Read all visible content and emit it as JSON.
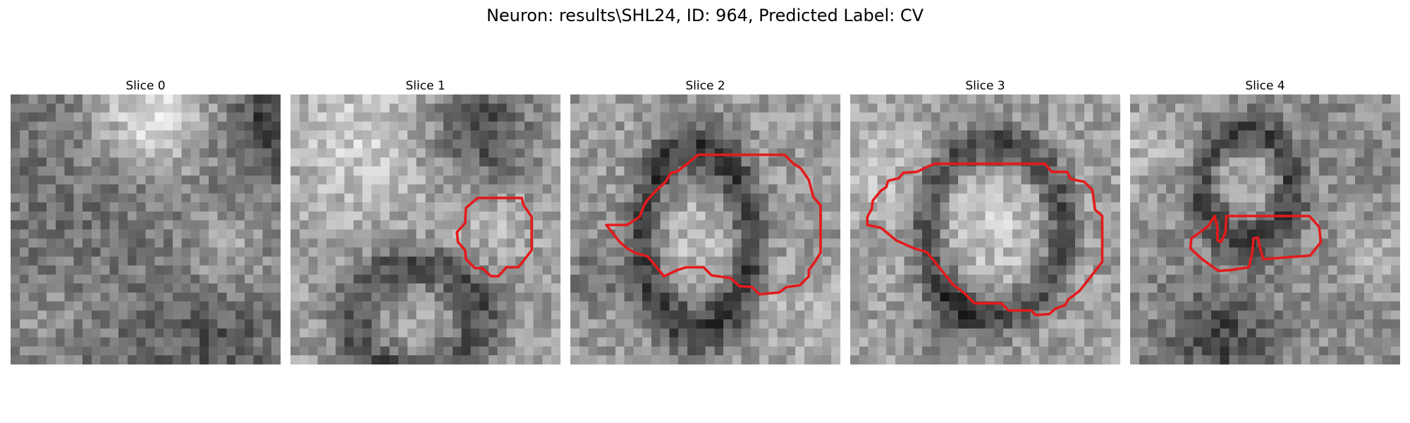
{
  "figure": {
    "title": "Neuron: results\\SHL24, ID: 964, Predicted Label: CV"
  },
  "panels": [
    {
      "title": "Slice 0"
    },
    {
      "title": "Slice 1"
    },
    {
      "title": "Slice 2"
    },
    {
      "title": "Slice 3"
    },
    {
      "title": "Slice 4"
    }
  ],
  "colors": {
    "contour": "#e41a1c",
    "background": "#ffffff"
  }
}
